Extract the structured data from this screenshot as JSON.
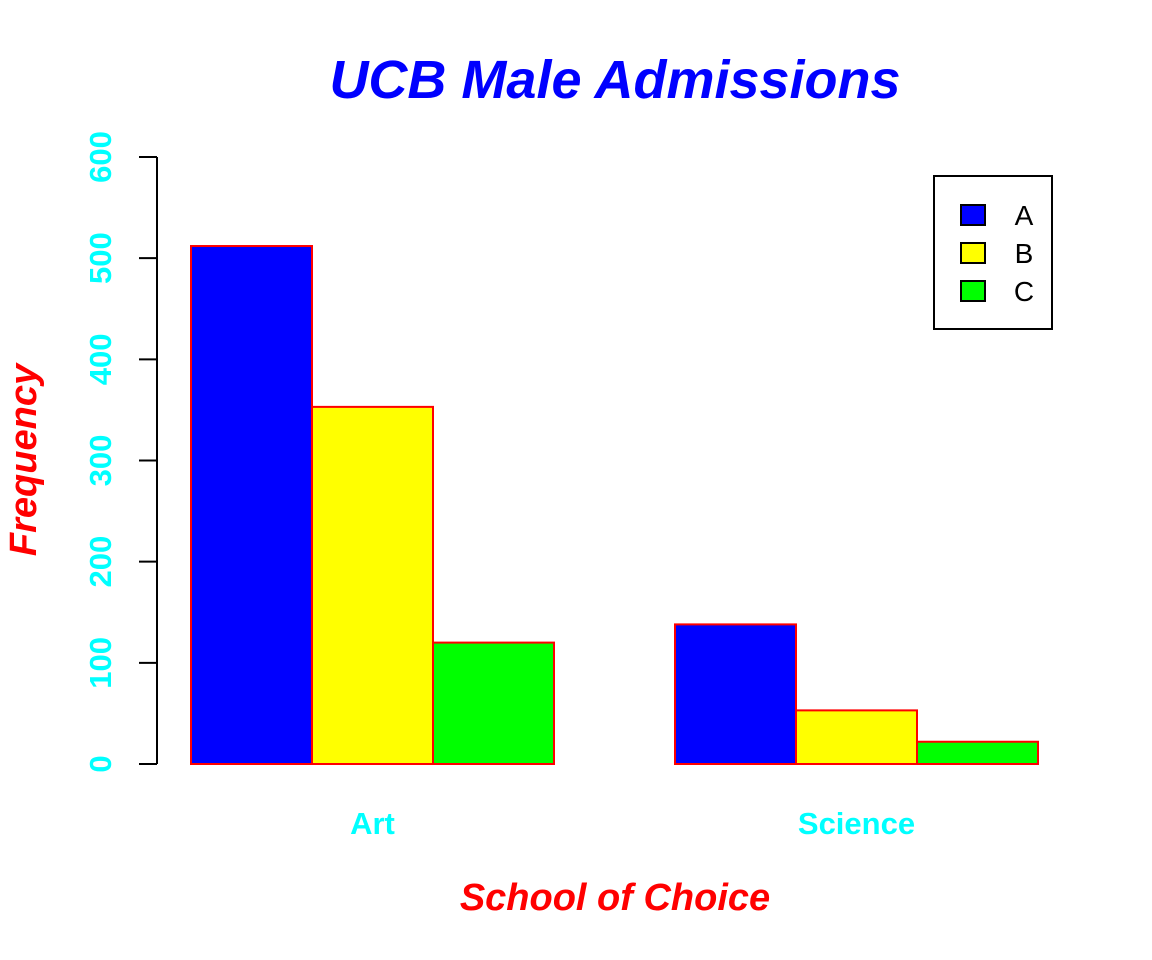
{
  "chart_data": {
    "type": "bar",
    "title": "UCB Male Admissions",
    "xlabel": "School of Choice",
    "ylabel": "Frequency",
    "categories": [
      "Art",
      "Science"
    ],
    "series": [
      {
        "name": "A",
        "values": [
          512,
          138
        ]
      },
      {
        "name": "B",
        "values": [
          353,
          53
        ]
      },
      {
        "name": "C",
        "values": [
          120,
          22
        ]
      }
    ],
    "ylim": [
      0,
      600
    ],
    "yticks": [
      0,
      100,
      200,
      300,
      400,
      500,
      600
    ],
    "legend_position": "top-right",
    "grid": false
  },
  "colors": {
    "title": "#0000ff",
    "axis_title": "#ff0000",
    "tick_label": "#00ffff",
    "bar_border": "#ff0000",
    "series": [
      "#0000ff",
      "#ffff00",
      "#00ff00"
    ]
  }
}
